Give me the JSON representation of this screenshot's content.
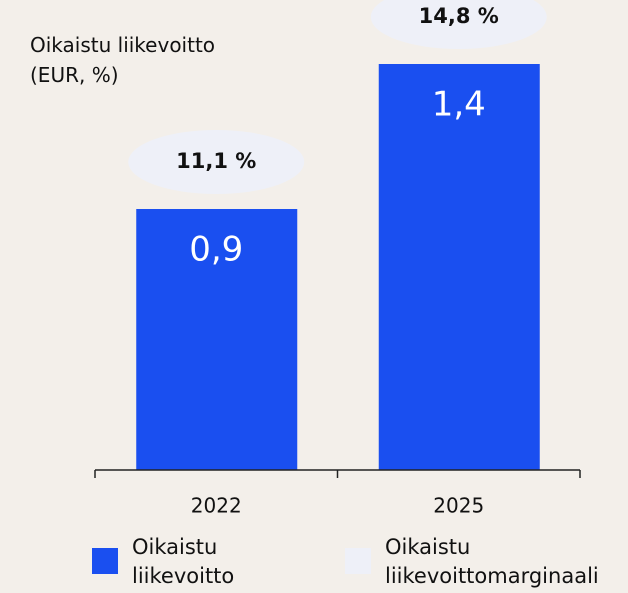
{
  "chart_data": {
    "type": "bar",
    "title": "Oikaistu liikevoitto (EUR, %)",
    "categories": [
      "2022",
      "2025"
    ],
    "series": [
      {
        "name": "Oikaistu liikevoitto",
        "color": "#1a4ff0",
        "values": [
          0.9,
          1.4
        ],
        "value_labels": [
          "0,9",
          "1,4"
        ]
      },
      {
        "name": "Oikaistu liikevoittomarginaali",
        "color": "#eef0f8",
        "values": [
          11.1,
          14.8
        ],
        "value_labels": [
          "11,1 %",
          "14,8 %"
        ]
      }
    ],
    "ylim": [
      0,
      1.5
    ]
  }
}
